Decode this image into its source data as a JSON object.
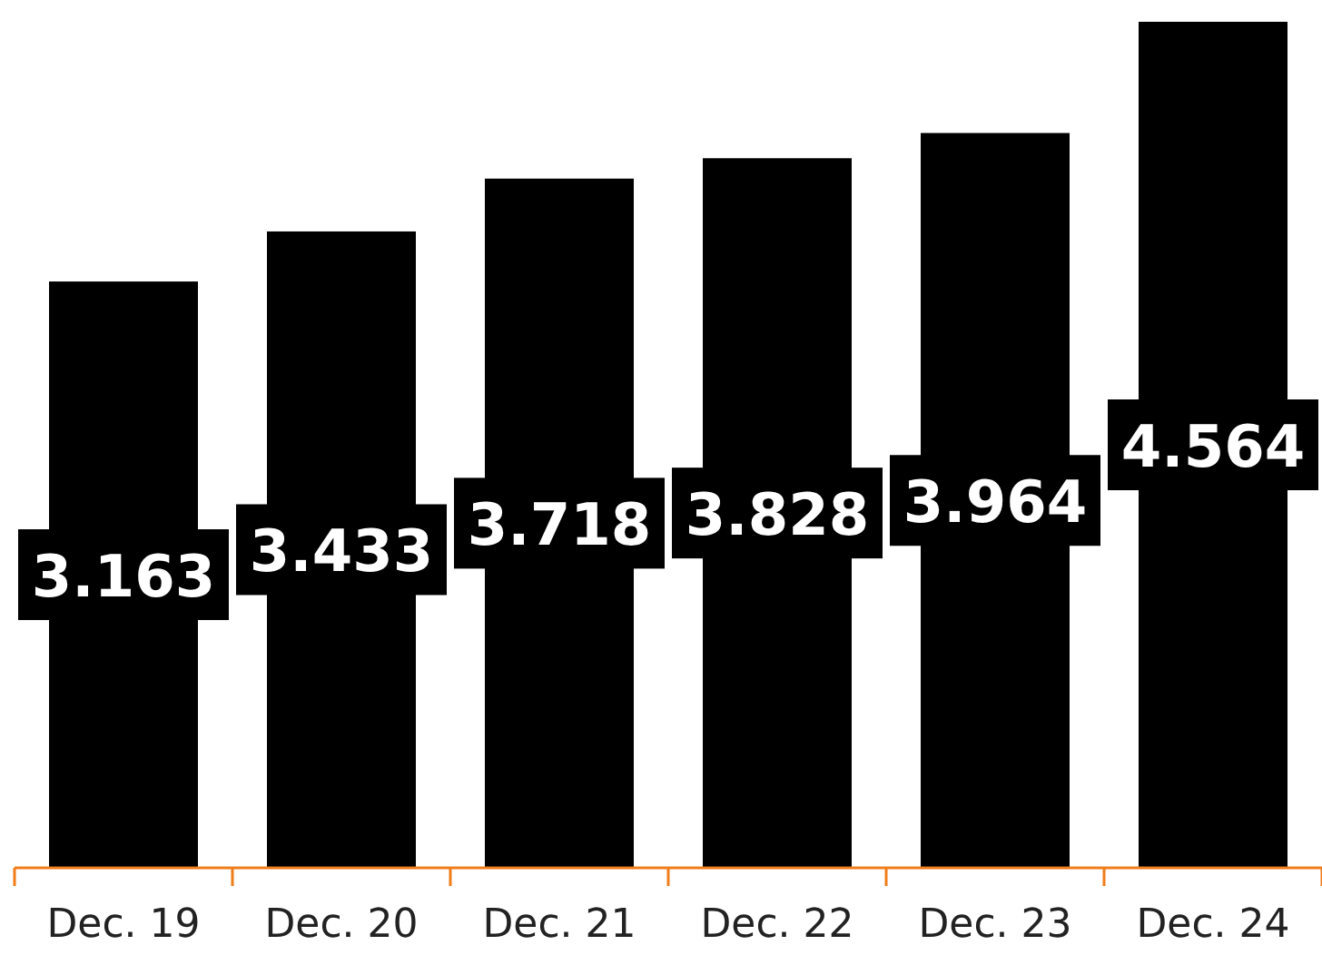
{
  "chart_data": {
    "type": "bar",
    "categories": [
      "Dec. 19",
      "Dec. 20",
      "Dec. 21",
      "Dec. 22",
      "Dec. 23",
      "Dec. 24"
    ],
    "values": [
      3.163,
      3.433,
      3.718,
      3.828,
      3.964,
      4.564
    ],
    "color": "#000000",
    "data_labels": true
  }
}
